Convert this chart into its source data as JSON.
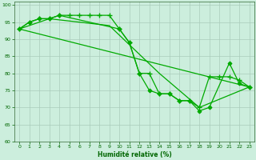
{
  "xlabel": "Humidité relative (%)",
  "background_color": "#cceedd",
  "grid_color": "#aaccbb",
  "line_color": "#00aa00",
  "xlim": [
    -0.5,
    23.5
  ],
  "ylim": [
    60,
    101
  ],
  "yticks": [
    60,
    65,
    70,
    75,
    80,
    85,
    90,
    95,
    100
  ],
  "xticks": [
    0,
    1,
    2,
    3,
    4,
    5,
    6,
    7,
    8,
    9,
    10,
    11,
    12,
    13,
    14,
    15,
    16,
    17,
    18,
    19,
    20,
    21,
    22,
    23
  ],
  "series": [
    {
      "x": [
        0,
        1,
        2,
        3,
        4,
        10,
        11,
        12,
        13,
        14,
        15,
        16,
        17,
        18,
        19,
        21,
        22,
        23
      ],
      "y": [
        93,
        95,
        96,
        96,
        97,
        93,
        89,
        80,
        75,
        74,
        74,
        72,
        72,
        69,
        70,
        83,
        77,
        76
      ],
      "marker": "D",
      "markersize": 2.5,
      "linewidth": 0.9
    },
    {
      "x": [
        0,
        1,
        2,
        3,
        4,
        5,
        6,
        7,
        8,
        9,
        10,
        11,
        12,
        13,
        14,
        15,
        16,
        17,
        18,
        19,
        20,
        21,
        22,
        23
      ],
      "y": [
        93,
        95,
        96,
        96,
        97,
        97,
        97,
        97,
        97,
        97,
        93,
        89,
        80,
        80,
        74,
        74,
        72,
        72,
        70,
        79,
        79,
        79,
        78,
        76
      ],
      "marker": "+",
      "markersize": 4,
      "linewidth": 0.9
    },
    {
      "x": [
        0,
        23
      ],
      "y": [
        93,
        76
      ],
      "marker": null,
      "markersize": 0,
      "linewidth": 0.9
    },
    {
      "x": [
        0,
        3,
        9,
        14,
        18,
        23
      ],
      "y": [
        93,
        96,
        94,
        80,
        70,
        76
      ],
      "marker": null,
      "markersize": 0,
      "linewidth": 0.9
    }
  ]
}
